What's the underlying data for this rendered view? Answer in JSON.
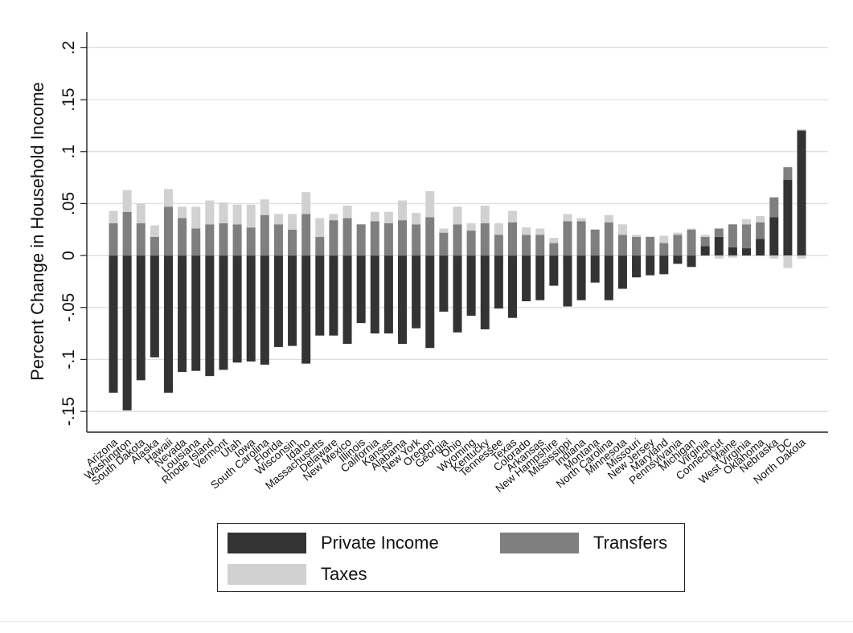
{
  "chart_data": {
    "type": "bar",
    "stacked": true,
    "ylabel": "Percent Change in Household Income",
    "xlabel": "",
    "ylim": [
      -0.17,
      0.215
    ],
    "yticks": [
      -0.15,
      -0.1,
      -0.05,
      0,
      0.05,
      0.1,
      0.15,
      0.2
    ],
    "ytick_labels": [
      "-.15",
      "-.1",
      "-.05",
      "0",
      ".05",
      ".1",
      ".15",
      ".2"
    ],
    "grid": true,
    "legend_position": "bottom",
    "colors": {
      "Private Income": "#333333",
      "Transfers": "#7f7f7f",
      "Taxes": "#d1d1d1"
    },
    "categories": [
      "Arizona",
      "Washington",
      "South Dakota",
      "Alaska",
      "Hawaii",
      "Nevada",
      "Louisiana",
      "Rhode Island",
      "Vermont",
      "Utah",
      "Iowa",
      "South Carolina",
      "Florida",
      "Wisconsin",
      "Idaho",
      "Massachusetts",
      "Delaware",
      "New Mexico",
      "Illinois",
      "California",
      "Kansas",
      "Alabama",
      "New York",
      "Oregon",
      "Georgia",
      "Ohio",
      "Wyoming",
      "Kentucky",
      "Tennessee",
      "Texas",
      "Colorado",
      "Arkansas",
      "New Hampshire",
      "Mississippi",
      "Indiana",
      "Montana",
      "North Carolina",
      "Minnesota",
      "Missouri",
      "New Jersey",
      "Maryland",
      "Pennsylvania",
      "Michigan",
      "Virginia",
      "Connecticut",
      "Maine",
      "West Virginia",
      "Oklahoma",
      "Nebraska",
      "DC",
      "North Dakota"
    ],
    "series": [
      {
        "name": "Private Income",
        "values": [
          -0.132,
          -0.149,
          -0.12,
          -0.098,
          -0.132,
          -0.112,
          -0.111,
          -0.116,
          -0.11,
          -0.103,
          -0.102,
          -0.105,
          -0.088,
          -0.087,
          -0.104,
          -0.077,
          -0.077,
          -0.085,
          -0.065,
          -0.075,
          -0.075,
          -0.085,
          -0.07,
          -0.089,
          -0.054,
          -0.074,
          -0.058,
          -0.071,
          -0.051,
          -0.06,
          -0.044,
          -0.043,
          -0.029,
          -0.049,
          -0.043,
          -0.026,
          -0.043,
          -0.032,
          -0.021,
          -0.019,
          -0.018,
          -0.008,
          -0.011,
          0.009,
          0.018,
          0.008,
          0.007,
          0.016,
          0.037,
          0.073,
          0.12
        ]
      },
      {
        "name": "Transfers",
        "values": [
          0.031,
          0.042,
          0.031,
          0.018,
          0.047,
          0.036,
          0.026,
          0.03,
          0.031,
          0.03,
          0.027,
          0.039,
          0.03,
          0.025,
          0.04,
          0.018,
          0.034,
          0.036,
          0.03,
          0.033,
          0.031,
          0.034,
          0.03,
          0.037,
          0.022,
          0.03,
          0.024,
          0.031,
          0.02,
          0.032,
          0.02,
          0.02,
          0.012,
          0.033,
          0.033,
          0.025,
          0.032,
          0.02,
          0.018,
          0.018,
          0.012,
          0.02,
          0.025,
          0.009,
          0.008,
          0.022,
          0.023,
          0.016,
          0.019,
          0.012,
          0.001
        ]
      },
      {
        "name": "Taxes",
        "values": [
          0.012,
          0.021,
          0.019,
          0.011,
          0.017,
          0.011,
          0.021,
          0.023,
          0.02,
          0.019,
          0.022,
          0.015,
          0.01,
          0.015,
          0.021,
          0.018,
          0.006,
          0.012,
          0.0,
          0.009,
          0.011,
          0.019,
          0.011,
          0.025,
          0.004,
          0.017,
          0.007,
          0.017,
          0.011,
          0.011,
          0.007,
          0.006,
          0.005,
          0.007,
          0.003,
          0.0,
          0.007,
          0.01,
          0.002,
          0.0,
          0.007,
          0.002,
          0.001,
          0.002,
          -0.003,
          -0.002,
          0.005,
          0.006,
          -0.003,
          -0.012,
          -0.003
        ]
      }
    ]
  },
  "legend": {
    "items": [
      {
        "label": "Private Income",
        "color": "#333333"
      },
      {
        "label": "Transfers",
        "color": "#7f7f7f"
      },
      {
        "label": "Taxes",
        "color": "#d1d1d1"
      }
    ]
  }
}
